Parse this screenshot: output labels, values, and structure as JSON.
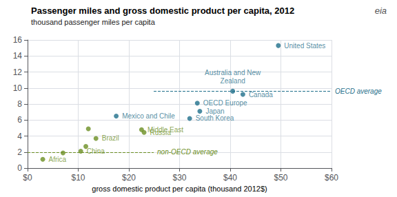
{
  "chart_data": {
    "type": "scatter",
    "title": "Passenger miles and gross domestic product per capita, 2012",
    "subtitle": "thousand passenger miles per capita",
    "xlabel": "gross domestic product per capita (thousand 2012$)",
    "annotations": [
      "eia"
    ],
    "xlim": [
      0,
      60
    ],
    "ylim": [
      0,
      16
    ],
    "xticks": [
      {
        "value": 0,
        "label": "$0"
      },
      {
        "value": 10,
        "label": "$10"
      },
      {
        "value": 20,
        "label": "$20"
      },
      {
        "value": 30,
        "label": "$30"
      },
      {
        "value": 40,
        "label": "$40"
      },
      {
        "value": 50,
        "label": "$50"
      },
      {
        "value": 60,
        "label": "$60"
      }
    ],
    "yticks": [
      0,
      2,
      4,
      6,
      8,
      10,
      12,
      14,
      16
    ],
    "grid": true,
    "series": [
      {
        "color": "#1f6f8b",
        "x": [
          49.5,
          40.5,
          42.5,
          33.5,
          34.0,
          32.0,
          17.5
        ],
        "values": [
          15.3,
          9.6,
          9.2,
          8.1,
          7.1,
          6.2,
          6.5
        ],
        "labels": [
          "United States",
          "Australia and New\nZealand",
          "Canada",
          "OECD Europe",
          "Japan",
          "South Korea",
          "Mexico and Chile"
        ],
        "average": 9.6,
        "average_label": "OECD average",
        "line_style": "dashed"
      },
      {
        "color": "#6b8e23",
        "x": [
          3.0,
          7.0,
          10.5,
          11.5,
          13.5,
          12.0,
          22.5,
          23.0
        ],
        "values": [
          1.1,
          1.9,
          2.1,
          2.7,
          3.7,
          4.9,
          4.8,
          4.45
        ],
        "labels": [
          "Africa",
          null,
          "China",
          null,
          "Brazil",
          null,
          "Middle East",
          "Russia"
        ],
        "average": 2.0,
        "average_label": "non-OECD average",
        "line_style": "dashed"
      }
    ]
  }
}
